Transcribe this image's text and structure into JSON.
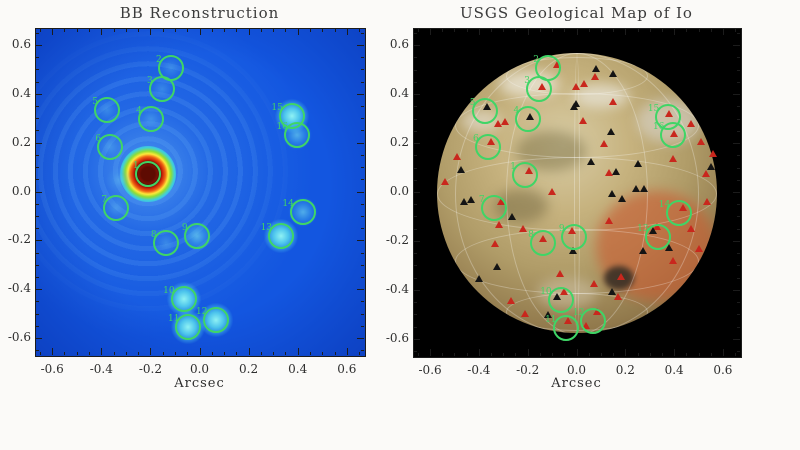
{
  "figure": {
    "background": "#fbfaf8",
    "marker_green": "#3fd566",
    "triangle_red": "#c9271d",
    "triangle_black": "#141414"
  },
  "chart_data": [
    {
      "id": "bb_reconstruction",
      "type": "heatmap",
      "title": "BB Reconstruction",
      "xlabel": "Arcsec",
      "units": "arcsec",
      "xlim": [
        -0.67,
        0.67
      ],
      "ylim": [
        -0.67,
        0.67
      ],
      "x_ticks": [
        -0.6,
        -0.4,
        -0.2,
        0.0,
        0.2,
        0.4,
        0.6
      ],
      "y_ticks": [
        -0.6,
        -0.4,
        -0.2,
        0.0,
        0.2,
        0.4,
        0.6
      ],
      "x_tick_labels": [
        "-0.6",
        "-0.4",
        "-0.2",
        "0.0",
        "0.2",
        "0.4",
        "0.6"
      ],
      "y_tick_labels": [
        "-0.6",
        "-0.4",
        "-0.2",
        "0.0",
        "0.2",
        "0.4",
        "0.6"
      ],
      "minor_tick_step": 0.05,
      "grid": false,
      "sources": [
        {
          "id": 1,
          "x": -0.215,
          "y": 0.074,
          "intensity": "core"
        },
        {
          "id": 2,
          "x": -0.121,
          "y": 0.512,
          "intensity": "faint"
        },
        {
          "id": 3,
          "x": -0.158,
          "y": 0.424,
          "intensity": "faint"
        },
        {
          "id": 4,
          "x": -0.202,
          "y": 0.303,
          "intensity": "faint"
        },
        {
          "id": 5,
          "x": -0.381,
          "y": 0.337,
          "intensity": "faint"
        },
        {
          "id": 6,
          "x": -0.368,
          "y": 0.187,
          "intensity": "faint"
        },
        {
          "id": 7,
          "x": -0.344,
          "y": -0.063,
          "intensity": "faint"
        },
        {
          "id": 8,
          "x": -0.142,
          "y": -0.205,
          "intensity": "faint"
        },
        {
          "id": 9,
          "x": -0.016,
          "y": -0.18,
          "intensity": "medium"
        },
        {
          "id": 10,
          "x": -0.069,
          "y": -0.438,
          "intensity": "strong"
        },
        {
          "id": 11,
          "x": -0.049,
          "y": -0.551,
          "intensity": "strong"
        },
        {
          "id": 12,
          "x": 0.065,
          "y": -0.522,
          "intensity": "strong"
        },
        {
          "id": 13,
          "x": 0.328,
          "y": -0.18,
          "intensity": "strong"
        },
        {
          "id": 14,
          "x": 0.417,
          "y": -0.08,
          "intensity": "medium"
        },
        {
          "id": 15,
          "x": 0.372,
          "y": 0.312,
          "intensity": "strong"
        },
        {
          "id": 16,
          "x": 0.393,
          "y": 0.237,
          "intensity": "medium"
        }
      ],
      "extra_faint_blobs": [
        [
          -0.33,
          0.05
        ]
      ]
    },
    {
      "id": "usgs_io_map",
      "type": "map_overlay",
      "title": "USGS Geological Map of Io",
      "xlabel": "Arcsec",
      "units": "arcsec",
      "xlim": [
        -0.67,
        0.67
      ],
      "ylim": [
        -0.67,
        0.67
      ],
      "x_ticks": [
        -0.6,
        -0.4,
        -0.2,
        0.0,
        0.2,
        0.4,
        0.6
      ],
      "y_ticks": [
        -0.6,
        -0.4,
        -0.2,
        0.0,
        0.2,
        0.4,
        0.6
      ],
      "x_tick_labels": [
        "-0.6",
        "-0.4",
        "-0.2",
        "0.0",
        "0.2",
        "0.4",
        "0.6"
      ],
      "y_tick_labels": [
        "-0.6",
        "-0.4",
        "-0.2",
        "0.0",
        "0.2",
        "0.4",
        "0.6"
      ],
      "minor_tick_step": 0.05,
      "grid": false,
      "disk_radius_arcsec": 0.574,
      "circles": [
        {
          "id": 1,
          "x": -0.215,
          "y": 0.074
        },
        {
          "id": 2,
          "x": -0.121,
          "y": 0.512
        },
        {
          "id": 3,
          "x": -0.158,
          "y": 0.424
        },
        {
          "id": 4,
          "x": -0.202,
          "y": 0.303
        },
        {
          "id": 5,
          "x": -0.381,
          "y": 0.337
        },
        {
          "id": 6,
          "x": -0.368,
          "y": 0.187
        },
        {
          "id": 7,
          "x": -0.344,
          "y": -0.063
        },
        {
          "id": 8,
          "x": -0.142,
          "y": -0.205
        },
        {
          "id": 9,
          "x": -0.016,
          "y": -0.18
        },
        {
          "id": 10,
          "x": -0.069,
          "y": -0.438
        },
        {
          "id": 11,
          "x": -0.049,
          "y": -0.551
        },
        {
          "id": 12,
          "x": 0.065,
          "y": -0.522
        },
        {
          "id": 13,
          "x": 0.328,
          "y": -0.18
        },
        {
          "id": 14,
          "x": 0.417,
          "y": -0.08
        },
        {
          "id": 15,
          "x": 0.372,
          "y": 0.312
        },
        {
          "id": 16,
          "x": 0.393,
          "y": 0.237
        }
      ],
      "red_triangles": [
        [
          -0.326,
          0.275
        ],
        [
          -0.297,
          0.283
        ],
        [
          -0.355,
          0.201
        ],
        [
          -0.494,
          0.139
        ],
        [
          -0.199,
          0.082
        ],
        [
          -0.105,
          -0.004
        ],
        [
          -0.543,
          0.037
        ],
        [
          -0.006,
          0.426
        ],
        [
          -0.084,
          0.516
        ],
        [
          -0.146,
          0.426
        ],
        [
          0.072,
          0.467
        ],
        [
          0.027,
          0.439
        ],
        [
          0.145,
          0.365
        ],
        [
          0.023,
          0.287
        ],
        [
          0.109,
          0.193
        ],
        [
          0.396,
          0.234
        ],
        [
          0.377,
          0.316
        ],
        [
          0.465,
          0.275
        ],
        [
          0.506,
          0.201
        ],
        [
          0.555,
          0.152
        ],
        [
          0.391,
          0.131
        ],
        [
          -0.314,
          -0.045
        ],
        [
          -0.322,
          -0.139
        ],
        [
          -0.223,
          -0.156
        ],
        [
          -0.141,
          -0.197
        ],
        [
          -0.023,
          -0.164
        ],
        [
          -0.338,
          -0.217
        ],
        [
          -0.072,
          -0.34
        ],
        [
          -0.055,
          -0.414
        ],
        [
          -0.273,
          -0.451
        ],
        [
          -0.215,
          -0.504
        ],
        [
          -0.039,
          -0.533
        ],
        [
          0.129,
          0.074
        ],
        [
          0.527,
          0.07
        ],
        [
          0.531,
          -0.045
        ],
        [
          0.432,
          -0.07
        ],
        [
          0.129,
          -0.123
        ],
        [
          0.326,
          -0.148
        ],
        [
          0.465,
          -0.156
        ],
        [
          0.498,
          -0.238
        ],
        [
          0.391,
          -0.287
        ],
        [
          0.178,
          -0.352
        ],
        [
          0.068,
          -0.381
        ],
        [
          0.166,
          -0.434
        ],
        [
          0.08,
          -0.496
        ],
        [
          0.035,
          -0.553
        ]
      ],
      "black_triangles": [
        [
          -0.371,
          0.344
        ],
        [
          -0.195,
          0.303
        ],
        [
          -0.477,
          0.086
        ],
        [
          -0.006,
          0.357
        ],
        [
          0.076,
          0.5
        ],
        [
          0.145,
          0.48
        ],
        [
          -0.014,
          0.344
        ],
        [
          0.137,
          0.242
        ],
        [
          0.248,
          0.111
        ],
        [
          0.055,
          0.119
        ],
        [
          0.158,
          0.078
        ],
        [
          0.547,
          0.098
        ],
        [
          -0.465,
          -0.045
        ],
        [
          -0.437,
          -0.037
        ],
        [
          -0.268,
          -0.107
        ],
        [
          -0.018,
          -0.246
        ],
        [
          -0.33,
          -0.311
        ],
        [
          -0.404,
          -0.361
        ],
        [
          -0.084,
          -0.434
        ],
        [
          0.24,
          0.008
        ],
        [
          0.273,
          0.008
        ],
        [
          0.141,
          -0.012
        ],
        [
          0.309,
          -0.164
        ],
        [
          0.375,
          -0.234
        ],
        [
          0.268,
          -0.246
        ],
        [
          0.141,
          -0.414
        ],
        [
          -0.121,
          -0.508
        ],
        [
          0.182,
          -0.033
        ]
      ]
    }
  ]
}
